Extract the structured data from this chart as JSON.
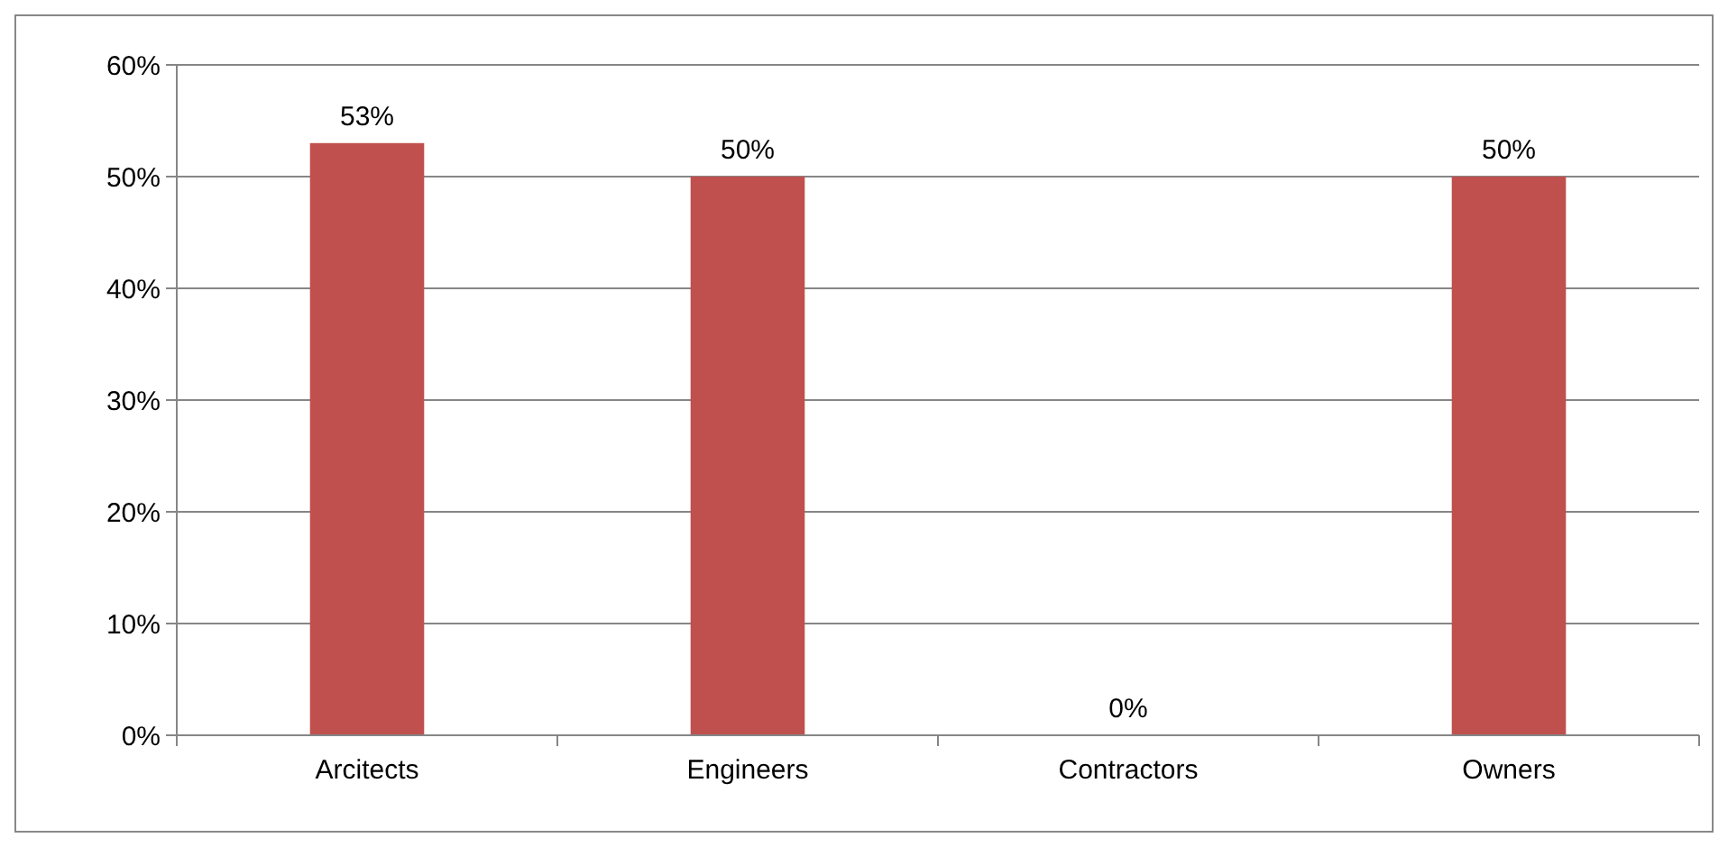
{
  "chart_data": {
    "type": "bar",
    "categories": [
      "Arcitects",
      "Engineers",
      "Contractors",
      "Owners"
    ],
    "values": [
      53,
      50,
      0,
      50
    ],
    "color": "#c0504d",
    "value_labels": [
      "53%",
      "50%",
      "0%",
      "50%"
    ],
    "ylim": [
      0,
      60
    ],
    "yticks": [
      {
        "value": 0,
        "label": "0%"
      },
      {
        "value": 10,
        "label": "10%"
      },
      {
        "value": 20,
        "label": "20%"
      },
      {
        "value": 30,
        "label": "30%"
      },
      {
        "value": 40,
        "label": "40%"
      },
      {
        "value": 50,
        "label": "50%"
      },
      {
        "value": 60,
        "label": "60%"
      }
    ],
    "grid": "y"
  }
}
